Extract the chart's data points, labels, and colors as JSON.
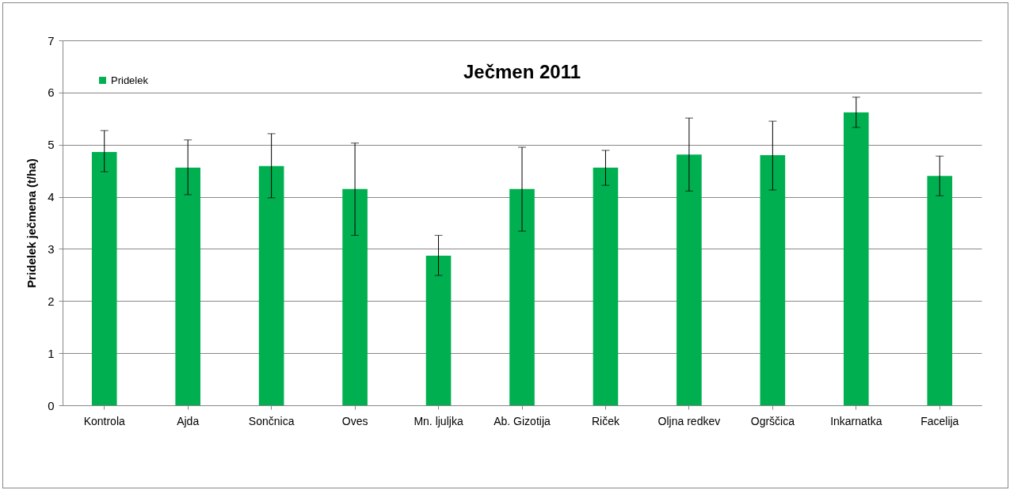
{
  "chart_data": {
    "type": "bar",
    "title": "Ječmen 2011",
    "ylabel": "Pridelek ječmena (t/ha)",
    "categories": [
      "Kontrola",
      "Ajda",
      "Sončnica",
      "Oves",
      "Mn. ljuljka",
      "Ab. Gizotija",
      "Riček",
      "Oljna redkev",
      "Ogrščica",
      "Inkarnatka",
      "Facelija"
    ],
    "series": [
      {
        "name": "Pridelek",
        "color": "#00b050",
        "values": [
          4.86,
          4.56,
          4.59,
          4.15,
          2.87,
          4.15,
          4.56,
          4.81,
          4.8,
          5.62,
          4.4
        ],
        "errors": [
          [
            4.48,
            5.27
          ],
          [
            4.04,
            5.09
          ],
          [
            3.98,
            5.21
          ],
          [
            3.26,
            5.03
          ],
          [
            2.49,
            3.26
          ],
          [
            3.34,
            4.95
          ],
          [
            4.22,
            4.89
          ],
          [
            4.11,
            5.51
          ],
          [
            4.13,
            5.45
          ],
          [
            5.33,
            5.91
          ],
          [
            4.02,
            4.78
          ]
        ]
      }
    ],
    "ylim": [
      0,
      7
    ],
    "yticks": [
      0,
      1,
      2,
      3,
      4,
      5,
      6,
      7
    ],
    "grid": "y",
    "legend": "top left"
  }
}
